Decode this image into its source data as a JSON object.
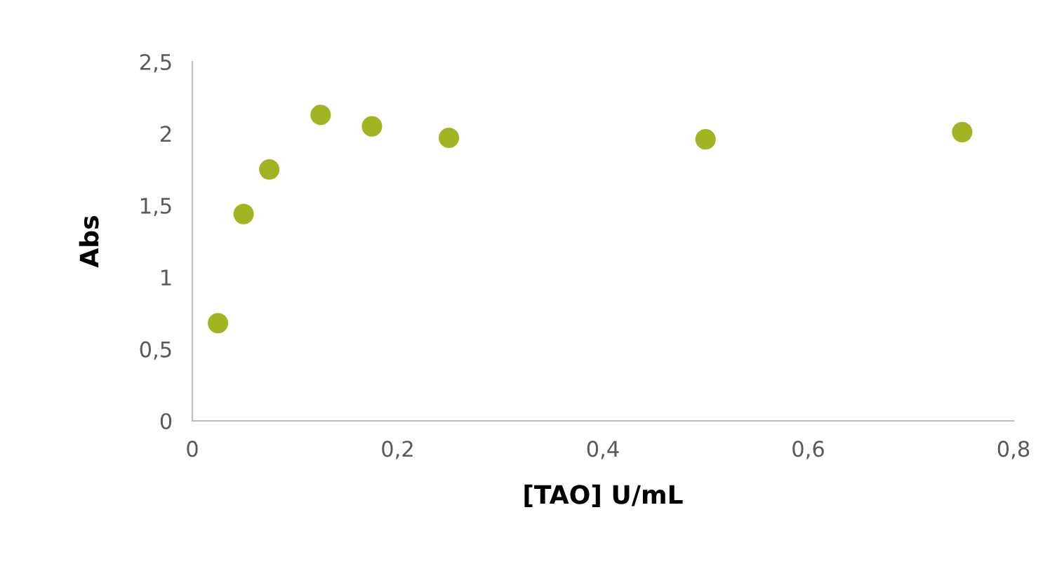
{
  "chart_data": {
    "type": "scatter",
    "xlabel": "[TAO] U/mL",
    "ylabel": "Abs",
    "x": [
      0.025,
      0.05,
      0.075,
      0.125,
      0.175,
      0.25,
      0.5,
      0.75
    ],
    "series": [
      {
        "color": "#a2b422",
        "values": [
          0.68,
          1.44,
          1.75,
          2.13,
          2.05,
          1.97,
          1.96,
          2.01
        ]
      }
    ],
    "xlim": [
      0,
      0.8
    ],
    "ylim": [
      0,
      2.5
    ],
    "xticks": [
      0,
      {
        "value": 0.2,
        "label": "0,2"
      },
      {
        "value": 0.4,
        "label": "0,4"
      },
      {
        "value": 0.6,
        "label": "0,6"
      },
      {
        "value": 0.8,
        "label": "0,8"
      }
    ],
    "yticks": [
      0,
      {
        "value": 0.5,
        "label": "0,5"
      },
      1,
      {
        "value": 1.5,
        "label": "1,5"
      },
      2,
      {
        "value": 2.5,
        "label": "2,5"
      }
    ],
    "marker": "circle",
    "grid": false,
    "legend": false
  }
}
